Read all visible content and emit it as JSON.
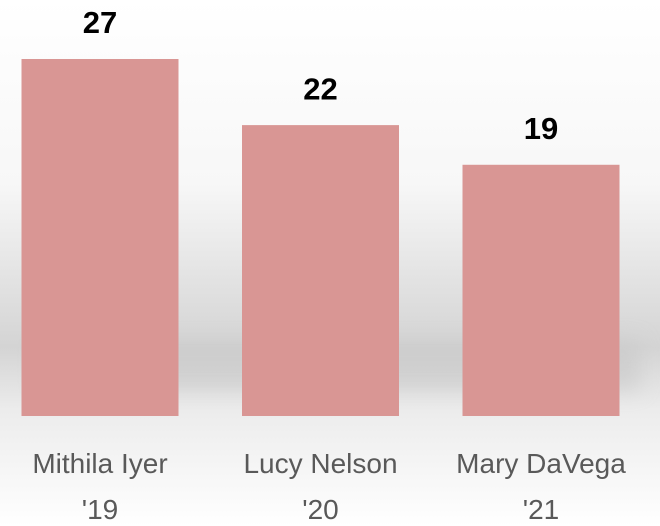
{
  "chart_data": {
    "type": "bar",
    "categories": [
      "Mithila Iyer '19",
      "Lucy Nelson '20",
      "Mary DaVega '21"
    ],
    "values": [
      27,
      22,
      19
    ],
    "color": "#d99694"
  }
}
